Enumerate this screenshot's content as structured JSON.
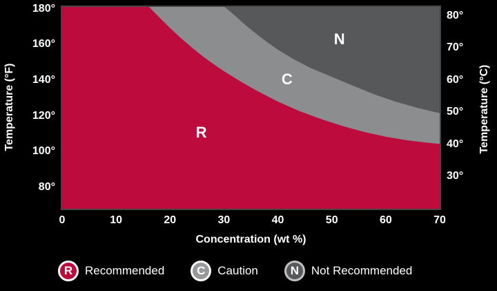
{
  "chart_data": {
    "type": "area",
    "title": "",
    "xlabel": "Concentration (wt %)",
    "ylabel_left": "Temperature (°F)",
    "ylabel_right": "Temperature (°C)",
    "xlim": [
      0,
      70
    ],
    "ylim_f": [
      68,
      181
    ],
    "grid": false,
    "legend_position": "bottom",
    "x_ticks": {
      "values": [
        0,
        10,
        20,
        30,
        40,
        50,
        60,
        70
      ],
      "labels": [
        "0",
        "10",
        "20",
        "30",
        "40",
        "50",
        "60",
        "70"
      ]
    },
    "y_ticks_f": {
      "values": [
        180,
        160,
        140,
        120,
        100,
        80
      ],
      "labels": [
        "180°",
        "160°",
        "140°",
        "120°",
        "100°",
        "80°"
      ]
    },
    "y_ticks_c": {
      "values_f_equiv": [
        176,
        158,
        140,
        122,
        104,
        86
      ],
      "labels": [
        "80°",
        "70°",
        "60°",
        "50°",
        "40°",
        "30°"
      ]
    },
    "regions": [
      {
        "id": "R",
        "letter": "R",
        "name": "Recommended",
        "color": "#BC0B3C",
        "label_at": [
          25.8,
          110.5
        ]
      },
      {
        "id": "C",
        "letter": "C",
        "name": "Caution",
        "color": "#8B8D8F",
        "label_at": [
          41.7,
          140.5
        ]
      },
      {
        "id": "N",
        "letter": "N",
        "name": "Not Recommended",
        "color": "#57585A",
        "label_at": [
          51.4,
          163.0
        ]
      }
    ],
    "boundaries": {
      "recommended_caution": [
        [
          16,
          181.3
        ],
        [
          18,
          175.2
        ],
        [
          20,
          169.2
        ],
        [
          22,
          163.6
        ],
        [
          24,
          158.4
        ],
        [
          26,
          153.5
        ],
        [
          28,
          149.1
        ],
        [
          30,
          145.0
        ],
        [
          33,
          139.4
        ],
        [
          36,
          134.2
        ],
        [
          40,
          128.0
        ],
        [
          44,
          122.7
        ],
        [
          48,
          118.2
        ],
        [
          52,
          114.3
        ],
        [
          56,
          111.0
        ],
        [
          60,
          108.3
        ],
        [
          64,
          106.3
        ],
        [
          67,
          105.2
        ],
        [
          70,
          104.3
        ]
      ],
      "caution_not_recommended": [
        [
          30,
          181.3
        ],
        [
          32,
          176.2
        ],
        [
          34,
          170.8
        ],
        [
          36,
          165.9
        ],
        [
          38,
          161.3
        ],
        [
          40,
          157.0
        ],
        [
          43,
          151.6
        ],
        [
          46,
          146.9
        ],
        [
          50,
          141.8
        ],
        [
          54,
          136.8
        ],
        [
          58,
          131.9
        ],
        [
          62,
          127.8
        ],
        [
          66,
          124.4
        ],
        [
          70,
          121.5
        ]
      ]
    }
  },
  "legend": {
    "items": [
      {
        "symbol": "R",
        "label": "Recommended",
        "fill": "#BC0B3C",
        "ring": "#FFFFFF"
      },
      {
        "symbol": "C",
        "label": "Caution",
        "fill": "#97999B",
        "ring": "#FFFFFF"
      },
      {
        "symbol": "N",
        "label": "Not Recommended",
        "fill": "#58595B",
        "ring": "#C2C3C5"
      }
    ]
  }
}
